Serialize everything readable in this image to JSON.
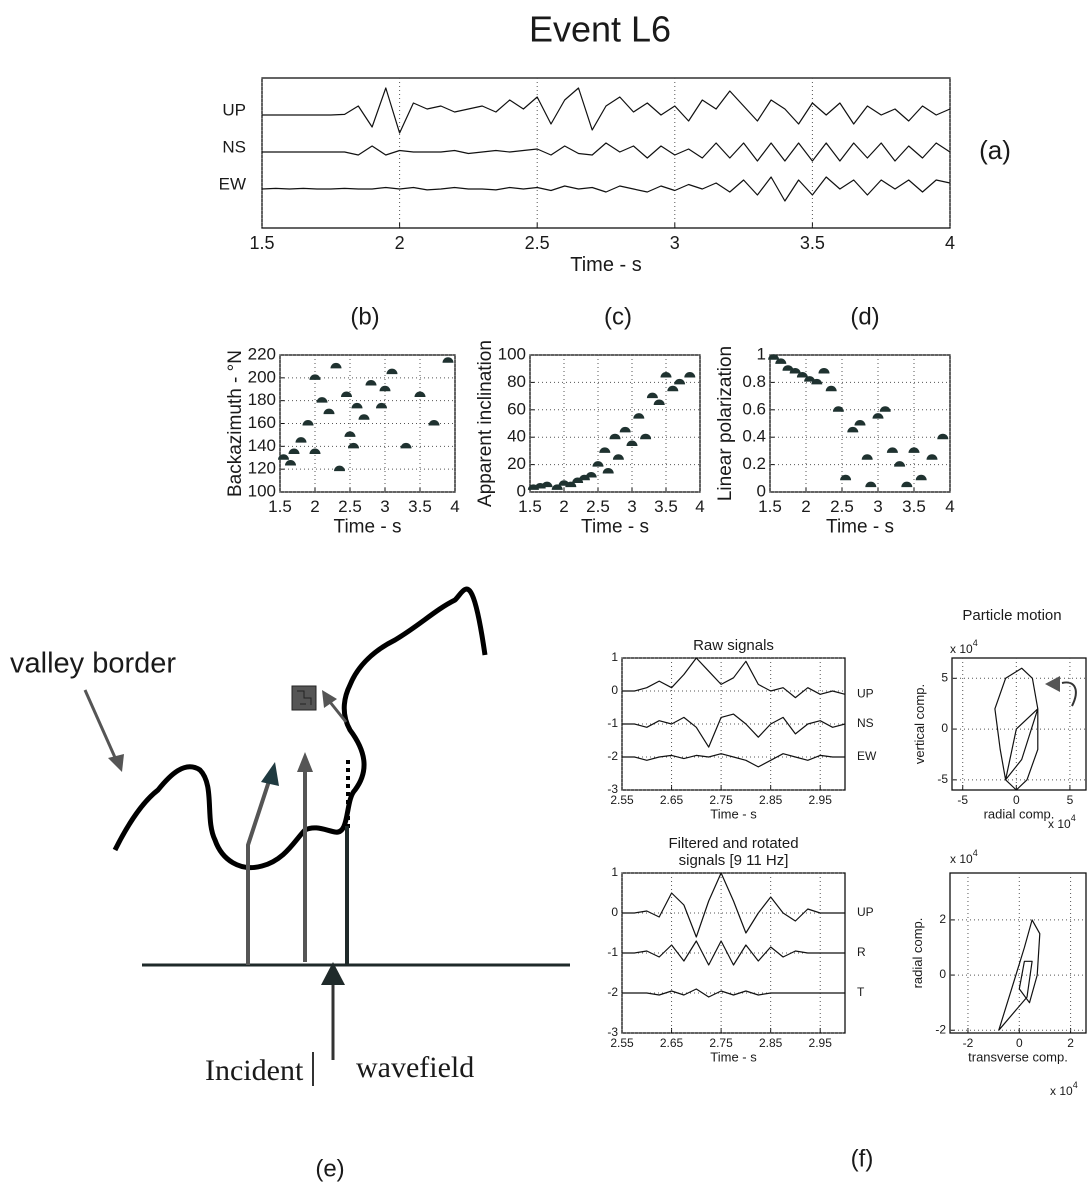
{
  "figure": {
    "title": "Event L6",
    "panel_f": "(f)",
    "particle_motion": "Particle motion"
  },
  "diagram": {
    "label": "(e)",
    "valley_border": "valley border",
    "incident": "Incident",
    "wavefield": "wavefield"
  },
  "chart_data": [
    {
      "type": "line",
      "panel_label": "(a)",
      "xlabel": "Time  - s",
      "xlim": [
        1.5,
        4
      ],
      "xticks": [
        1.5,
        2,
        2.5,
        3,
        3.5,
        4
      ],
      "grid": true,
      "x": [
        1.5,
        1.55,
        1.6,
        1.65,
        1.7,
        1.75,
        1.8,
        1.85,
        1.9,
        1.95,
        2,
        2.05,
        2.1,
        2.15,
        2.2,
        2.25,
        2.3,
        2.35,
        2.4,
        2.45,
        2.5,
        2.55,
        2.6,
        2.65,
        2.7,
        2.75,
        2.8,
        2.85,
        2.9,
        2.95,
        3,
        3.05,
        3.1,
        3.15,
        3.2,
        3.25,
        3.3,
        3.35,
        3.4,
        3.45,
        3.5,
        3.55,
        3.6,
        3.65,
        3.7,
        3.75,
        3.8,
        3.85,
        3.9,
        3.95,
        4
      ],
      "series": [
        {
          "name": "UP",
          "color": "#111111",
          "values": [
            0,
            0,
            0,
            0,
            0,
            0,
            0.02,
            0.3,
            -0.4,
            0.9,
            -0.6,
            0.4,
            0.2,
            0.3,
            0.1,
            0.2,
            0.3,
            0.1,
            0.5,
            0.2,
            0.6,
            -0.3,
            0.5,
            0.9,
            -0.5,
            0.3,
            0.6,
            0.1,
            0.4,
            0,
            0.3,
            -0.2,
            0.5,
            0.2,
            0.8,
            0.3,
            -0.2,
            0.5,
            0.2,
            -0.3,
            0.4,
            0,
            0.4,
            -0.3,
            0.3,
            0,
            0.2,
            -0.2,
            0.3,
            0,
            0.2
          ]
        },
        {
          "name": "NS",
          "color": "#111111",
          "values": [
            0,
            0,
            0,
            0,
            0,
            0,
            0,
            -0.1,
            0.2,
            -0.1,
            0.05,
            0,
            0,
            0,
            0.05,
            -0.05,
            0,
            0.05,
            0,
            0.05,
            0.1,
            -0.1,
            0.2,
            -0.05,
            -0.1,
            0.3,
            0,
            0.2,
            -0.2,
            0.2,
            -0.1,
            0.1,
            -0.2,
            0.3,
            -0.2,
            0.3,
            -0.3,
            0.3,
            -0.3,
            0.3,
            -0.3,
            0.3,
            -0.3,
            0.3,
            -0.2,
            0.3,
            -0.3,
            0.2,
            -0.2,
            0.3,
            0
          ]
        },
        {
          "name": "EW",
          "color": "#111111",
          "values": [
            0,
            0.02,
            0,
            0.02,
            0,
            0,
            0.02,
            0,
            0,
            0.05,
            0,
            0.05,
            -0.03,
            0,
            0.05,
            0,
            0,
            -0.03,
            0.05,
            0,
            0.05,
            -0.05,
            0.1,
            0,
            0.05,
            -0.1,
            0.1,
            0,
            -0.1,
            0.1,
            -0.05,
            0.15,
            0,
            0.2,
            -0.1,
            0.3,
            -0.2,
            0.4,
            -0.4,
            0.3,
            -0.2,
            0.4,
            0,
            0.3,
            -0.2,
            0.3,
            0,
            0.3,
            -0.1,
            0.3,
            0.2
          ]
        }
      ]
    },
    {
      "type": "scatter",
      "panel_label": "(b)",
      "xlabel": "Time - s",
      "ylabel": "Backazimuth - °N",
      "color": "#1f3230",
      "grid": true,
      "xlim": [
        1.5,
        4
      ],
      "xticks": [
        1.5,
        2,
        2.5,
        3,
        3.5,
        4
      ],
      "ylim": [
        100,
        220
      ],
      "yticks": [
        100,
        120,
        140,
        160,
        180,
        200,
        220
      ],
      "x": [
        1.55,
        1.65,
        1.8,
        1.9,
        2.0,
        2.1,
        2.2,
        2.3,
        2.45,
        2.55,
        2.7,
        2.8,
        2.95,
        3.1,
        3.3,
        3.5,
        3.7,
        3.9,
        2.0,
        2.5,
        1.7,
        2.6,
        3.0,
        2.35
      ],
      "values": [
        130,
        125,
        145,
        160,
        200,
        180,
        170,
        210,
        185,
        140,
        165,
        195,
        175,
        205,
        140,
        185,
        160,
        215,
        135,
        150,
        135,
        175,
        190,
        120
      ]
    },
    {
      "type": "scatter",
      "panel_label": "(c)",
      "xlabel": "Time - s",
      "ylabel": "Apparent inclination",
      "color": "#1f3230",
      "grid": true,
      "xlim": [
        1.5,
        4
      ],
      "xticks": [
        1.5,
        2,
        2.5,
        3,
        3.5,
        4
      ],
      "ylim": [
        0,
        100
      ],
      "yticks": [
        0,
        20,
        40,
        60,
        80,
        100
      ],
      "x": [
        1.55,
        1.65,
        1.75,
        1.9,
        2.0,
        2.1,
        2.2,
        2.3,
        2.4,
        2.5,
        2.6,
        2.65,
        2.75,
        2.8,
        2.9,
        3.0,
        3.1,
        3.2,
        3.3,
        3.4,
        3.5,
        3.6,
        3.7,
        3.85
      ],
      "values": [
        3,
        4,
        5,
        3,
        6,
        5,
        8,
        10,
        12,
        20,
        30,
        15,
        40,
        25,
        45,
        35,
        55,
        40,
        70,
        65,
        85,
        75,
        80,
        85
      ]
    },
    {
      "type": "scatter",
      "panel_label": "(d)",
      "xlabel": "Time - s",
      "ylabel": "Linear polarization",
      "color": "#1f3230",
      "grid": true,
      "xlim": [
        1.5,
        4
      ],
      "xticks": [
        1.5,
        2,
        2.5,
        3,
        3.5,
        4
      ],
      "ylim": [
        0,
        1
      ],
      "yticks": [
        0,
        0.2,
        0.4,
        0.6,
        0.8,
        1
      ],
      "x": [
        1.55,
        1.65,
        1.75,
        1.85,
        1.95,
        2.05,
        2.15,
        2.25,
        2.35,
        2.45,
        2.55,
        2.65,
        2.75,
        2.85,
        2.9,
        3.0,
        3.1,
        3.2,
        3.3,
        3.4,
        3.5,
        3.6,
        3.75,
        3.9
      ],
      "values": [
        0.98,
        0.95,
        0.9,
        0.88,
        0.85,
        0.82,
        0.8,
        0.88,
        0.75,
        0.6,
        0.1,
        0.45,
        0.5,
        0.25,
        0.05,
        0.55,
        0.6,
        0.3,
        0.2,
        0.05,
        0.3,
        0.1,
        0.25,
        0.4
      ]
    },
    {
      "type": "line",
      "title": [
        "Raw signals"
      ],
      "xlabel": "Time - s",
      "grid": true,
      "xlim": [
        2.55,
        3.0
      ],
      "xticks": [
        2.55,
        2.65,
        2.75,
        2.85,
        2.95
      ],
      "ylim": [
        -3,
        1
      ],
      "yticks": [
        1,
        0,
        -1,
        -2,
        -3
      ],
      "x": [
        2.55,
        2.575,
        2.6,
        2.625,
        2.65,
        2.675,
        2.7,
        2.725,
        2.75,
        2.775,
        2.8,
        2.825,
        2.85,
        2.875,
        2.9,
        2.925,
        2.95,
        2.975,
        3.0
      ],
      "series": [
        {
          "name": "UP",
          "color": "#111111",
          "values": [
            0,
            0,
            0.1,
            0.3,
            0.1,
            0.5,
            1,
            0.6,
            0.2,
            0.4,
            0.9,
            0.2,
            0,
            0.1,
            -0.2,
            0.1,
            -0.1,
            0,
            -0.1
          ]
        },
        {
          "name": "NS",
          "color": "#111111",
          "values": [
            -1,
            -1,
            -1.1,
            -0.9,
            -1,
            -0.8,
            -1.1,
            -1.7,
            -0.8,
            -0.7,
            -1,
            -1.4,
            -1,
            -0.8,
            -1.3,
            -1,
            -0.9,
            -1.1,
            -1
          ]
        },
        {
          "name": "EW",
          "color": "#111111",
          "values": [
            -2,
            -2,
            -2.1,
            -2,
            -1.95,
            -2.05,
            -1.95,
            -2,
            -1.9,
            -2,
            -2.1,
            -2.3,
            -2.1,
            -1.9,
            -2,
            -2.1,
            -1.95,
            -2,
            -2
          ]
        }
      ]
    },
    {
      "type": "line",
      "title": [
        "Filtered and rotated",
        "signals [9 11 Hz]"
      ],
      "xlabel": "Time - s",
      "grid": true,
      "xlim": [
        2.55,
        3.0
      ],
      "xticks": [
        2.55,
        2.65,
        2.75,
        2.85,
        2.95
      ],
      "ylim": [
        -3,
        1
      ],
      "yticks": [
        1,
        0,
        -1,
        -2,
        -3
      ],
      "x": [
        2.55,
        2.575,
        2.6,
        2.625,
        2.65,
        2.675,
        2.7,
        2.725,
        2.75,
        2.775,
        2.8,
        2.825,
        2.85,
        2.875,
        2.9,
        2.925,
        2.95,
        2.975,
        3.0
      ],
      "series": [
        {
          "name": "UP",
          "color": "#111111",
          "values": [
            0,
            0,
            0.05,
            -0.1,
            0.5,
            0.2,
            -0.6,
            0.3,
            1,
            0.3,
            -0.5,
            0,
            0.4,
            0,
            -0.2,
            0.1,
            0,
            0,
            0
          ]
        },
        {
          "name": "R",
          "color": "#111111",
          "values": [
            -1,
            -1,
            -0.95,
            -1.1,
            -0.8,
            -1.2,
            -0.7,
            -1.3,
            -0.7,
            -1.3,
            -0.8,
            -1.2,
            -0.85,
            -1.1,
            -0.95,
            -1,
            -1,
            -1,
            -1
          ]
        },
        {
          "name": "T",
          "color": "#111111",
          "values": [
            -2,
            -2,
            -2,
            -2.05,
            -1.95,
            -2.05,
            -1.9,
            -2.1,
            -1.95,
            -2.05,
            -1.95,
            -2.05,
            -2,
            -2,
            -2,
            -2,
            -2,
            -2,
            -2
          ]
        }
      ]
    },
    {
      "type": "line",
      "xlabel": "radial comp.",
      "ylabel": "vertical comp.",
      "grid": true,
      "xscale": [
        "x 10",
        "4"
      ],
      "yscale": [
        "x 10",
        "4"
      ],
      "xlim": [
        -6,
        6.5
      ],
      "xticks": [
        -5,
        0,
        5
      ],
      "ylim": [
        -6,
        7
      ],
      "yticks": [
        5,
        0,
        -5
      ],
      "x": [
        -1,
        -1.5,
        -2,
        -1,
        0.5,
        1.5,
        2,
        2,
        1,
        0,
        -1,
        0,
        2,
        0.5,
        -1
      ],
      "series": [
        {
          "color": "#111111",
          "values": [
            -5,
            -2,
            2,
            5,
            6,
            5,
            2,
            -2,
            -5,
            -6,
            -5,
            0,
            2,
            -3,
            -5
          ]
        }
      ]
    },
    {
      "type": "line",
      "xlabel": "transverse comp.",
      "ylabel": "radial comp.",
      "grid": true,
      "xscale": [
        "x 10",
        "4"
      ],
      "yscale": [
        "x 10",
        "4"
      ],
      "xlim": [
        -2.7,
        2.6
      ],
      "xticks": [
        -2,
        0,
        2
      ],
      "ylim": [
        -2.1,
        3.7
      ],
      "yticks": [
        2,
        0,
        -2
      ],
      "x": [
        -0.8,
        -0.3,
        0.2,
        0.5,
        0.8,
        0.7,
        0.4,
        0,
        0.2,
        0.5,
        0.3,
        -0.8
      ],
      "series": [
        {
          "color": "#111111",
          "values": [
            -2,
            -0.5,
            1,
            2,
            1.5,
            0,
            -1,
            -0.5,
            0.5,
            0.5,
            -0.8,
            -2
          ]
        }
      ]
    }
  ]
}
